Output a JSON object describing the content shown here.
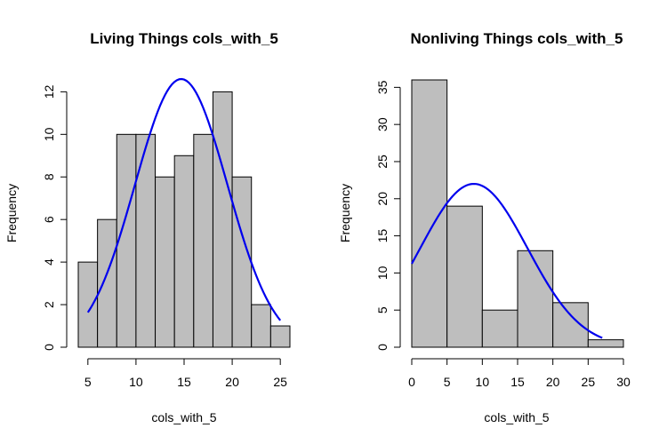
{
  "chart_data": [
    {
      "type": "bar",
      "title": "Living Things cols_with_5",
      "xlabel": "cols_with_5",
      "ylabel": "Frequency",
      "bins": [
        {
          "x0": 4,
          "x1": 6,
          "count": 4
        },
        {
          "x0": 6,
          "x1": 8,
          "count": 6
        },
        {
          "x0": 8,
          "x1": 10,
          "count": 10
        },
        {
          "x0": 10,
          "x1": 12,
          "count": 10
        },
        {
          "x0": 12,
          "x1": 14,
          "count": 8
        },
        {
          "x0": 14,
          "x1": 16,
          "count": 9
        },
        {
          "x0": 16,
          "x1": 18,
          "count": 10
        },
        {
          "x0": 18,
          "x1": 20,
          "count": 12
        },
        {
          "x0": 20,
          "x1": 22,
          "count": 8
        },
        {
          "x0": 22,
          "x1": 24,
          "count": 2
        },
        {
          "x0": 24,
          "x1": 26,
          "count": 1
        }
      ],
      "xticks": [
        "5",
        "10",
        "15",
        "20",
        "25"
      ],
      "yticks": [
        "0",
        "2",
        "4",
        "6",
        "8",
        "10",
        "12"
      ],
      "xlim": [
        4,
        26
      ],
      "ylim": [
        0,
        12.6
      ],
      "curve": {
        "mean": 14.7,
        "sd": 4.8,
        "peak": 12.6,
        "from": 5,
        "to": 25
      },
      "bar_color": "#bebebe",
      "curve_color": "#0000ee"
    },
    {
      "type": "bar",
      "title": "Nonliving Things cols_with_5",
      "xlabel": "cols_with_5",
      "ylabel": "Frequency",
      "bins": [
        {
          "x0": 0,
          "x1": 5,
          "count": 36
        },
        {
          "x0": 5,
          "x1": 10,
          "count": 19
        },
        {
          "x0": 10,
          "x1": 15,
          "count": 5
        },
        {
          "x0": 15,
          "x1": 20,
          "count": 13
        },
        {
          "x0": 20,
          "x1": 25,
          "count": 6
        },
        {
          "x0": 25,
          "x1": 30,
          "count": 1
        }
      ],
      "xticks": [
        "0",
        "5",
        "10",
        "15",
        "20",
        "25",
        "30"
      ],
      "yticks": [
        "0",
        "5",
        "10",
        "15",
        "20",
        "25",
        "30",
        "35"
      ],
      "xlim": [
        0,
        30
      ],
      "ylim": [
        0,
        36
      ],
      "curve": {
        "mean": 8.8,
        "sd": 7.6,
        "peak": 22,
        "from": 0,
        "to": 27
      },
      "bar_color": "#bebebe",
      "curve_color": "#0000ee"
    }
  ]
}
